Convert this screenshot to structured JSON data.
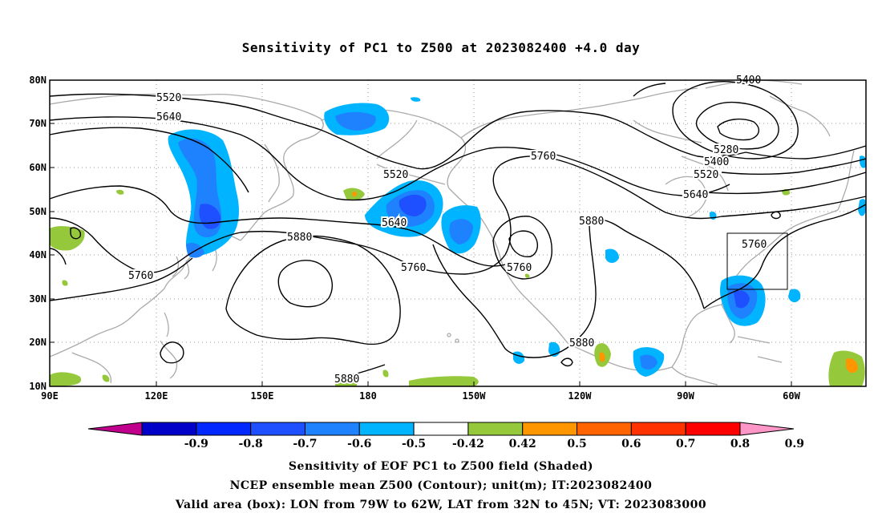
{
  "title": "Sensitivity of PC1 to Z500 at 2023082400 +4.0 day",
  "lon_ticks": [
    "90E",
    "120E",
    "150E",
    "180",
    "150W",
    "120W",
    "90W",
    "60W"
  ],
  "lat_ticks": [
    "80N",
    "70N",
    "60N",
    "50N",
    "40N",
    "30N",
    "20N",
    "10N"
  ],
  "contour_labels": {
    "c5520_west": "5520",
    "c5640_west": "5640",
    "c5520_mid": "5520",
    "c5640_mid": "5640",
    "c5760_mid": "5760",
    "c5760_top": "5760",
    "c5880_west": "5880",
    "c5760_west": "5760",
    "c5760_center": "5760",
    "c5880_east": "5880",
    "c5880_south": "5880",
    "c5880_bottom": "5880",
    "c5400_top": "5400",
    "c5280": "5280",
    "c5400_e": "5400",
    "c5520_e": "5520",
    "c5640_e": "5640",
    "c5760_box": "5760"
  },
  "colorbar": {
    "labels": [
      "-0.9",
      "-0.8",
      "-0.7",
      "-0.6",
      "-0.5",
      "-0.42",
      "0.42",
      "0.5",
      "0.6",
      "0.7",
      "0.8",
      "0.9"
    ],
    "colors": [
      "#c0008c",
      "#0000c8",
      "#0028ff",
      "#1e50ff",
      "#1e82ff",
      "#00b4ff",
      "#ffffff",
      "#96c83c",
      "#ff9600",
      "#ff6400",
      "#ff3200",
      "#ff0000",
      "#ff96c8"
    ]
  },
  "footer": {
    "line1": "Sensitivity of EOF PC1 to Z500 field (Shaded)",
    "line2": "NCEP ensemble mean Z500 (Contour); unit(m); IT:2023082400",
    "line3": "Valid area (box): LON from 79W to 62W, LAT from 32N to 45N; VT: 2023083000"
  }
}
